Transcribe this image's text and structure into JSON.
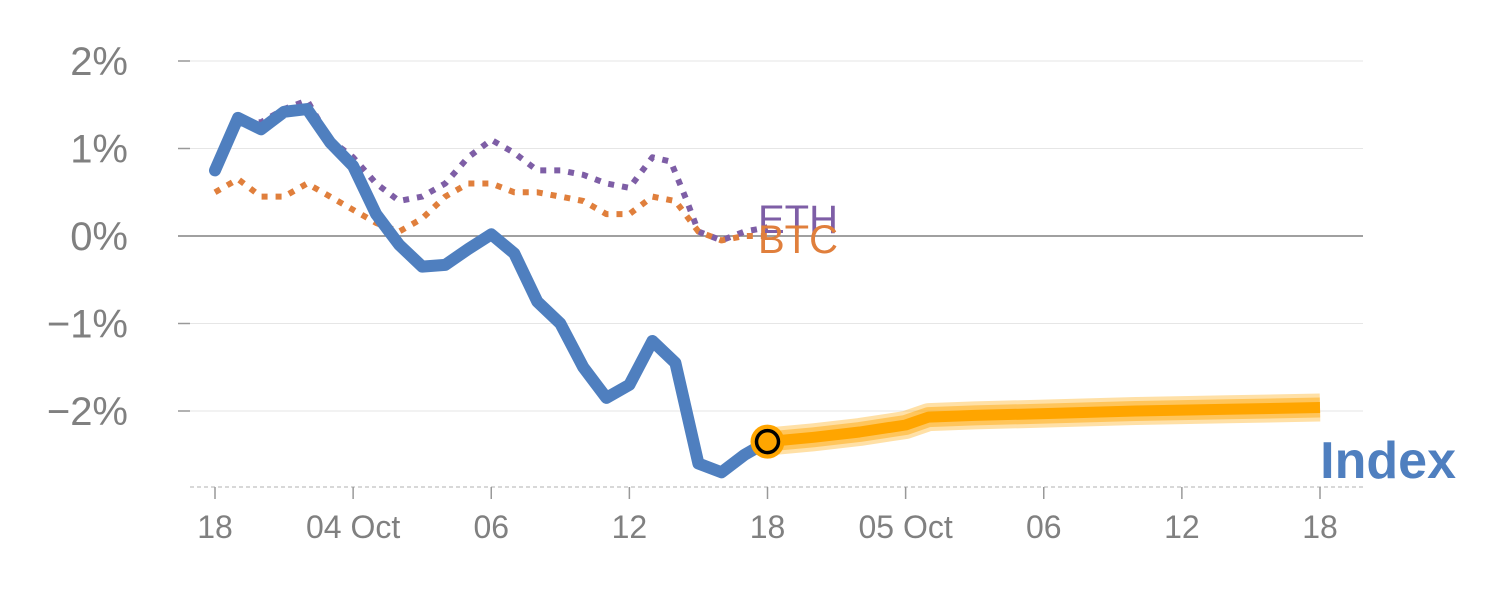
{
  "chart_data": {
    "type": "line",
    "title": "",
    "xlabel": "",
    "ylabel": "",
    "ylim": [
      -2.85,
      2.2
    ],
    "y_ticks": [
      {
        "value": 2,
        "label": "2%"
      },
      {
        "value": 1,
        "label": "1%"
      },
      {
        "value": 0,
        "label": "0%"
      },
      {
        "value": -1,
        "label": "−1%"
      },
      {
        "value": -2,
        "label": "−2%"
      }
    ],
    "x_range": [
      0,
      48
    ],
    "x_ticks": [
      {
        "x": 0,
        "label": "18"
      },
      {
        "x": 6,
        "label": "04 Oct"
      },
      {
        "x": 12,
        "label": "06"
      },
      {
        "x": 18,
        "label": "12"
      },
      {
        "x": 24,
        "label": "18"
      },
      {
        "x": 30,
        "label": "05 Oct"
      },
      {
        "x": 36,
        "label": "06"
      },
      {
        "x": 42,
        "label": "12"
      },
      {
        "x": 48,
        "label": "18"
      }
    ],
    "series": [
      {
        "name": "ETH",
        "label": "ETH",
        "color": "#7e5ea6",
        "style": "dotted",
        "points": [
          [
            0,
            0.8
          ],
          [
            1,
            1.3
          ],
          [
            2,
            1.3
          ],
          [
            3,
            1.45
          ],
          [
            4,
            1.55
          ],
          [
            5,
            1.1
          ],
          [
            6,
            0.9
          ],
          [
            7,
            0.6
          ],
          [
            8,
            0.4
          ],
          [
            9,
            0.45
          ],
          [
            10,
            0.6
          ],
          [
            11,
            0.9
          ],
          [
            12,
            1.1
          ],
          [
            13,
            0.95
          ],
          [
            14,
            0.75
          ],
          [
            15,
            0.75
          ],
          [
            16,
            0.7
          ],
          [
            17,
            0.6
          ],
          [
            18,
            0.55
          ],
          [
            19,
            0.9
          ],
          [
            19.8,
            0.85
          ],
          [
            20.5,
            0.4
          ],
          [
            21,
            0.05
          ],
          [
            22,
            -0.05
          ],
          [
            23,
            0.05
          ],
          [
            24,
            0.1
          ]
        ]
      },
      {
        "name": "BTC",
        "label": "BTC",
        "color": "#e07f3c",
        "style": "dotted",
        "points": [
          [
            0,
            0.5
          ],
          [
            1,
            0.65
          ],
          [
            2,
            0.45
          ],
          [
            3,
            0.45
          ],
          [
            4,
            0.6
          ],
          [
            5,
            0.45
          ],
          [
            6,
            0.3
          ],
          [
            7,
            0.15
          ],
          [
            8,
            0.05
          ],
          [
            9,
            0.2
          ],
          [
            10,
            0.45
          ],
          [
            11,
            0.6
          ],
          [
            12,
            0.6
          ],
          [
            13,
            0.5
          ],
          [
            14,
            0.5
          ],
          [
            15,
            0.45
          ],
          [
            16,
            0.4
          ],
          [
            17,
            0.25
          ],
          [
            18,
            0.25
          ],
          [
            19,
            0.45
          ],
          [
            20,
            0.4
          ],
          [
            21,
            0.05
          ],
          [
            22,
            -0.05
          ],
          [
            23,
            0.0
          ],
          [
            24,
            0.0
          ]
        ]
      },
      {
        "name": "Index",
        "label": "Index",
        "color": "#4f7fbf",
        "style": "solid",
        "points": [
          [
            0,
            0.75
          ],
          [
            1,
            1.35
          ],
          [
            2,
            1.22
          ],
          [
            3,
            1.42
          ],
          [
            4,
            1.45
          ],
          [
            5,
            1.07
          ],
          [
            6,
            0.8
          ],
          [
            7,
            0.25
          ],
          [
            8,
            -0.1
          ],
          [
            9,
            -0.35
          ],
          [
            10,
            -0.33
          ],
          [
            11,
            -0.15
          ],
          [
            12,
            0.02
          ],
          [
            13,
            -0.2
          ],
          [
            14,
            -0.75
          ],
          [
            15,
            -1.0
          ],
          [
            16,
            -1.5
          ],
          [
            17,
            -1.85
          ],
          [
            18,
            -1.7
          ],
          [
            19,
            -1.2
          ],
          [
            20,
            -1.45
          ],
          [
            21,
            -2.6
          ],
          [
            22,
            -2.7
          ],
          [
            23,
            -2.5
          ],
          [
            24,
            -2.35
          ]
        ]
      },
      {
        "name": "Forecast",
        "label": "",
        "color": "#ffa500",
        "style": "band",
        "points": [
          [
            24,
            -2.35
          ],
          [
            26,
            -2.3
          ],
          [
            28,
            -2.24
          ],
          [
            30,
            -2.16
          ],
          [
            31,
            -2.07
          ],
          [
            33,
            -2.05
          ],
          [
            36,
            -2.03
          ],
          [
            40,
            -2.0
          ],
          [
            44,
            -1.98
          ],
          [
            48,
            -1.96
          ]
        ]
      }
    ],
    "marker": {
      "x": 24,
      "y": -2.35,
      "fill": "#ffa500",
      "stroke": "#000000"
    },
    "colors": {
      "grid": "#e6e6e6",
      "zero_line": "#808080",
      "tick_text": "#808080",
      "baseline": "#cccccc"
    }
  }
}
